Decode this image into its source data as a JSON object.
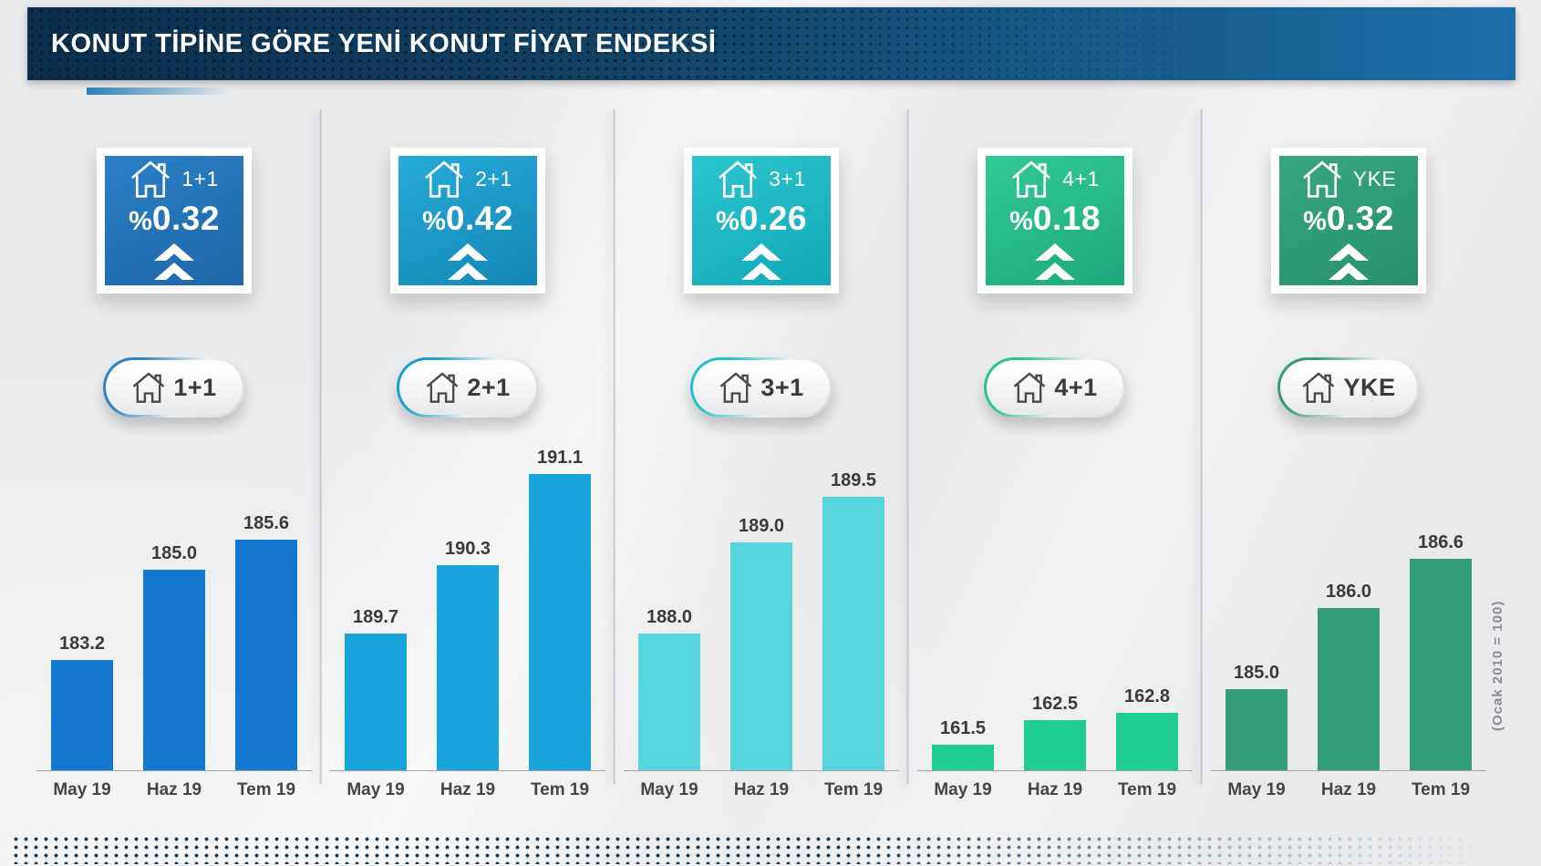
{
  "header": {
    "title": "KONUT TİPİNE GÖRE YENİ KONUT FİYAT ENDEKSİ"
  },
  "footnote": "(Ocak 2010 = 100)",
  "panels": [
    {
      "label": "1+1",
      "change_sign": "%",
      "change_value": "0.32",
      "trend": "up",
      "card_gradient": [
        "#2b80c6",
        "#1e66a8"
      ],
      "accent": "#2e82c4",
      "bar_color": "#1578d0"
    },
    {
      "label": "2+1",
      "change_sign": "%",
      "change_value": "0.42",
      "trend": "up",
      "card_gradient": [
        "#27abd9",
        "#1386b4"
      ],
      "accent": "#1aa0cc",
      "bar_color": "#17a5dc"
    },
    {
      "label": "3+1",
      "change_sign": "%",
      "change_value": "0.26",
      "trend": "up",
      "card_gradient": [
        "#2cc6cf",
        "#10a8b5"
      ],
      "accent": "#20c1ca",
      "bar_color": "#56d5de"
    },
    {
      "label": "4+1",
      "change_sign": "%",
      "change_value": "0.18",
      "trend": "up",
      "card_gradient": [
        "#33ca97",
        "#1da87c"
      ],
      "accent": "#2bc291",
      "bar_color": "#1fcd95"
    },
    {
      "label": "YKE",
      "change_sign": "%",
      "change_value": "0.32",
      "trend": "up",
      "card_gradient": [
        "#37a781",
        "#27906a"
      ],
      "accent": "#339c76",
      "bar_color": "#339d78"
    }
  ],
  "chart_data": [
    {
      "type": "bar",
      "title": "1+1",
      "categories": [
        "May 19",
        "Haz 19",
        "Tem 19"
      ],
      "values": [
        183.2,
        185.0,
        185.6
      ],
      "ylim": [
        181.0,
        187.0
      ],
      "ylabel": "(Ocak 2010 = 100)",
      "grid": false,
      "legend": "none"
    },
    {
      "type": "bar",
      "title": "2+1",
      "categories": [
        "May 19",
        "Haz 19",
        "Tem 19"
      ],
      "values": [
        189.7,
        190.3,
        191.1
      ],
      "ylim": [
        188.5,
        191.14
      ],
      "ylabel": "(Ocak 2010 = 100)",
      "grid": false,
      "legend": "none"
    },
    {
      "type": "bar",
      "title": "3+1",
      "categories": [
        "May 19",
        "Haz 19",
        "Tem 19"
      ],
      "values": [
        188.0,
        189.0,
        189.5
      ],
      "ylim": [
        186.5,
        189.8
      ],
      "ylabel": "(Ocak 2010 = 100)",
      "grid": false,
      "legend": "none"
    },
    {
      "type": "bar",
      "title": "4+1",
      "categories": [
        "May 19",
        "Haz 19",
        "Tem 19"
      ],
      "values": [
        161.5,
        162.5,
        162.8
      ],
      "ylim": [
        160.5,
        172.5
      ],
      "ylabel": "(Ocak 2010 = 100)",
      "grid": false,
      "legend": "none"
    },
    {
      "type": "bar",
      "title": "YKE",
      "categories": [
        "May 19",
        "Haz 19",
        "Tem 19"
      ],
      "values": [
        185.0,
        186.0,
        186.6
      ],
      "ylim": [
        184.0,
        187.7
      ],
      "ylabel": "(Ocak 2010 = 100)",
      "grid": false,
      "legend": "none"
    }
  ]
}
